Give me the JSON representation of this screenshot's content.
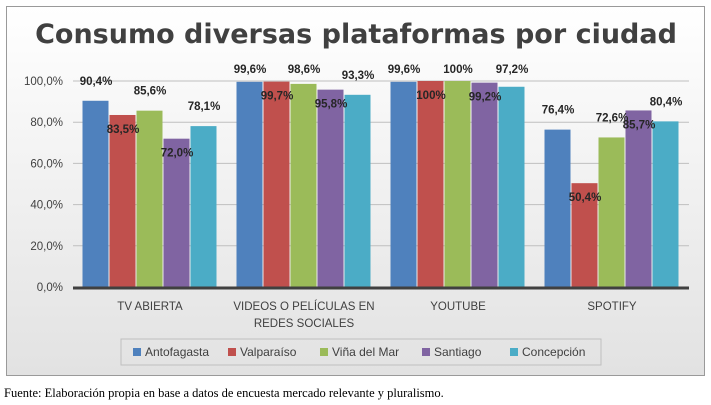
{
  "chart_data": {
    "type": "bar",
    "title": "Consumo diversas plataformas por ciudad",
    "categories": [
      [
        "TV ABIERTA"
      ],
      [
        "VIDEOS O PELÍCULAS EN",
        "REDES SOCIALES"
      ],
      [
        "YOUTUBE"
      ],
      [
        "SPOTIFY"
      ]
    ],
    "series": [
      {
        "name": "Antofagasta",
        "color": "#4f81bd",
        "values": [
          90.4,
          99.6,
          99.6,
          76.4
        ],
        "labels": [
          "90,4%",
          "99,6%",
          "99,6%",
          "76,4%"
        ]
      },
      {
        "name": "Valparaíso",
        "color": "#c0504d",
        "values": [
          83.5,
          99.7,
          100,
          50.4
        ],
        "labels": [
          "83,5%",
          "99,7%",
          "100%",
          "50,4%"
        ]
      },
      {
        "name": "Viña del Mar",
        "color": "#9bbb59",
        "values": [
          85.6,
          98.6,
          100,
          72.6
        ],
        "labels": [
          "85,6%",
          "98,6%",
          "100%",
          "72,6%"
        ]
      },
      {
        "name": "Santiago",
        "color": "#8064a2",
        "values": [
          72.0,
          95.8,
          99.2,
          85.7
        ],
        "labels": [
          "72,0%",
          "95,8%",
          "99,2%",
          "85,7%"
        ]
      },
      {
        "name": "Concepción",
        "color": "#4bacc6",
        "values": [
          78.1,
          93.3,
          97.2,
          80.4
        ],
        "labels": [
          "78,1%",
          "93,3%",
          "97,2%",
          "80,4%"
        ]
      }
    ],
    "yticks": [
      0,
      20,
      40,
      60,
      80,
      100
    ],
    "ytick_labels": [
      "0,0%",
      "20,0%",
      "40,0%",
      "60,0%",
      "80,0%",
      "100,0%"
    ],
    "ylim": [
      0,
      100
    ],
    "grid": true,
    "legend_position": "bottom"
  },
  "footer": {
    "source": "Fuente: Elaboración propia en base a datos de encuesta mercado relevante y pluralismo."
  }
}
